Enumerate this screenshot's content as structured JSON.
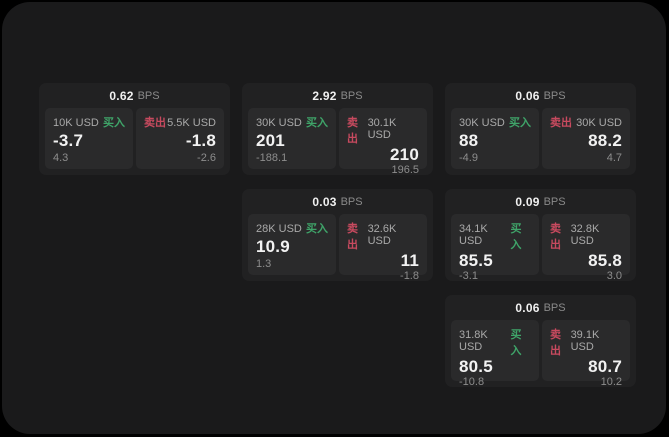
{
  "colors": {
    "background_outer": "#000000",
    "background_panel": "#1a1a1b",
    "card_background": "#212122",
    "tile_background": "#2a2a2b",
    "buy_green": "#3fa469",
    "sell_red": "#c84a5f",
    "primary_text": "#f2f2f2",
    "muted_text": "#8d8d8d"
  },
  "cards": [
    {
      "bps": "0.62",
      "bps_unit": "BPS",
      "buy": {
        "size": "10K USD",
        "side": "买入",
        "price": "-3.7",
        "delta": "4.3"
      },
      "sell": {
        "size": "5.5K USD",
        "side": "卖出",
        "price": "-1.8",
        "delta": "-2.6"
      }
    },
    {
      "bps": "2.92",
      "bps_unit": "BPS",
      "buy": {
        "size": "30K USD",
        "side": "买入",
        "price": "201",
        "delta": "-188.1"
      },
      "sell": {
        "size": "30.1K USD",
        "side": "卖出",
        "price": "210",
        "delta": "196.5"
      }
    },
    {
      "bps": "0.06",
      "bps_unit": "BPS",
      "buy": {
        "size": "30K USD",
        "side": "买入",
        "price": "88",
        "delta": "-4.9"
      },
      "sell": {
        "size": "30K USD",
        "side": "卖出",
        "price": "88.2",
        "delta": "4.7"
      }
    },
    {
      "bps": "0.03",
      "bps_unit": "BPS",
      "buy": {
        "size": "28K USD",
        "side": "买入",
        "price": "10.9",
        "delta": "1.3"
      },
      "sell": {
        "size": "32.6K USD",
        "side": "卖出",
        "price": "11",
        "delta": "-1.8"
      }
    },
    {
      "bps": "0.09",
      "bps_unit": "BPS",
      "buy": {
        "size": "34.1K USD",
        "side": "买入",
        "price": "85.5",
        "delta": "-3.1"
      },
      "sell": {
        "size": "32.8K USD",
        "side": "卖出",
        "price": "85.8",
        "delta": "3.0"
      }
    },
    {
      "bps": "0.06",
      "bps_unit": "BPS",
      "buy": {
        "size": "31.8K USD",
        "side": "买入",
        "price": "80.5",
        "delta": "-10.8"
      },
      "sell": {
        "size": "39.1K USD",
        "side": "卖出",
        "price": "80.7",
        "delta": "10.2"
      }
    }
  ]
}
